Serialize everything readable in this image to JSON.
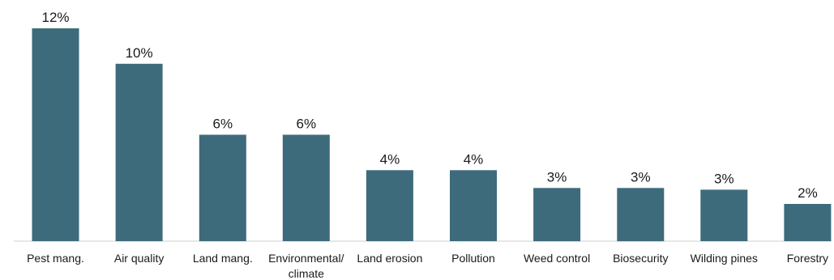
{
  "chart_data": {
    "type": "bar",
    "categories": [
      "Pest mang.",
      "Air quality",
      "Land mang.",
      "Environmental/ climate",
      "Land erosion",
      "Pollution",
      "Weed control",
      "Biosecurity",
      "Wilding pines",
      "Forestry"
    ],
    "category_lines": [
      [
        "Pest mang."
      ],
      [
        "Air quality"
      ],
      [
        "Land mang."
      ],
      [
        "Environmental/",
        "climate"
      ],
      [
        "Land erosion"
      ],
      [
        "Pollution"
      ],
      [
        "Weed control"
      ],
      [
        "Biosecurity"
      ],
      [
        "Wilding pines"
      ],
      [
        "Forestry"
      ]
    ],
    "values": [
      12,
      10,
      6,
      6,
      4,
      4,
      3,
      3,
      3,
      2
    ],
    "value_heights": [
      12,
      10,
      6,
      6,
      4,
      4,
      3,
      3,
      2.9,
      2.1
    ],
    "data_labels": [
      "12%",
      "10%",
      "6%",
      "6%",
      "4%",
      "4%",
      "3%",
      "3%",
      "3%",
      "2%"
    ],
    "ylim": [
      0,
      12
    ],
    "grid": false,
    "color": "#3d6b7b"
  }
}
